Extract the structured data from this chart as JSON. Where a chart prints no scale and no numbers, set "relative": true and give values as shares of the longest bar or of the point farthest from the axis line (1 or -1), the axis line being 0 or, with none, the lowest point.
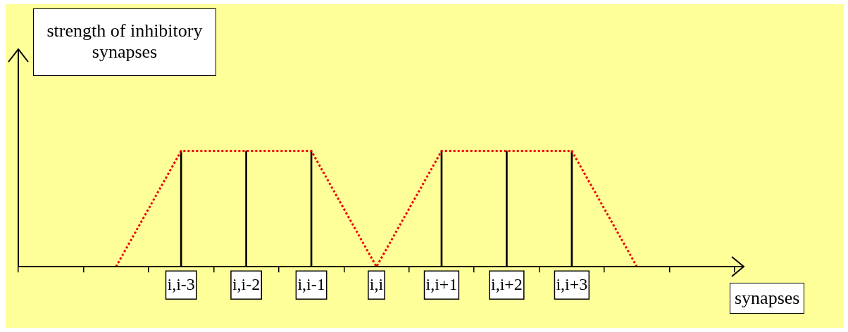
{
  "chart_data": {
    "type": "bar",
    "relative": true,
    "ylabel": "strength of inhibitory synapses",
    "xlabel": "synapses",
    "categories": [
      null,
      null,
      "i,i-3",
      "i,i-2",
      "i,i-1",
      "i,i",
      "i,i+1",
      "i,i+2",
      "i,i+3",
      null,
      null
    ],
    "series": [
      {
        "color": "#000000",
        "values": [
          null,
          null,
          1,
          1,
          1,
          0,
          1,
          1,
          1,
          null,
          null
        ]
      },
      {
        "type": "line",
        "color": "#ee0000",
        "line_style": "dotted",
        "values": [
          null,
          0,
          1,
          1,
          1,
          0,
          1,
          1,
          1,
          0,
          null
        ]
      }
    ]
  }
}
